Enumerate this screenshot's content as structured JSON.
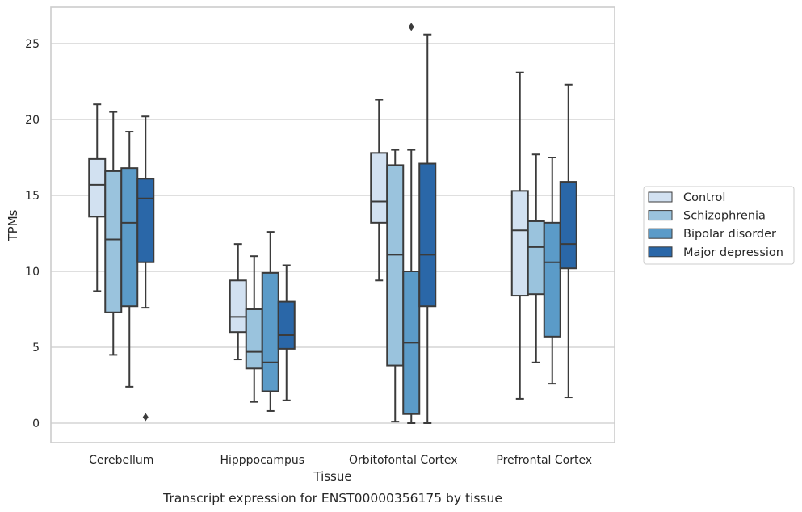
{
  "chart_data": {
    "type": "box",
    "title": "",
    "caption": "Transcript expression for ENST00000356175 by tissue",
    "xlabel": "Tissue",
    "ylabel": "TPMs",
    "ylim": [
      -1.2,
      27.2
    ],
    "yticks": [
      0,
      5,
      10,
      15,
      20,
      25
    ],
    "grid": "horizontal",
    "legend_position": "right",
    "categories": [
      "Cerebellum",
      "Hipppocampus",
      "Orbitofontal Cortex",
      "Prefrontal Cortex"
    ],
    "series": [
      {
        "name": "Control",
        "color": "#d2e1f1",
        "boxes": [
          {
            "whislo": 8.7,
            "q1": 13.6,
            "med": 15.7,
            "q3": 17.4,
            "whishi": 21.0,
            "fliers": []
          },
          {
            "whislo": 4.2,
            "q1": 6.0,
            "med": 7.0,
            "q3": 9.4,
            "whishi": 11.8,
            "fliers": []
          },
          {
            "whislo": 9.4,
            "q1": 13.2,
            "med": 14.6,
            "q3": 17.8,
            "whishi": 21.3,
            "fliers": []
          },
          {
            "whislo": 1.6,
            "q1": 8.4,
            "med": 12.7,
            "q3": 15.3,
            "whishi": 23.1,
            "fliers": []
          }
        ]
      },
      {
        "name": "Schizophrenia",
        "color": "#9ac3dd",
        "boxes": [
          {
            "whislo": 4.5,
            "q1": 7.3,
            "med": 12.1,
            "q3": 16.6,
            "whishi": 20.5,
            "fliers": []
          },
          {
            "whislo": 1.4,
            "q1": 3.6,
            "med": 4.7,
            "q3": 7.5,
            "whishi": 11.0,
            "fliers": []
          },
          {
            "whislo": 0.1,
            "q1": 3.8,
            "med": 11.1,
            "q3": 17.0,
            "whishi": 18.0,
            "fliers": []
          },
          {
            "whislo": 4.0,
            "q1": 8.5,
            "med": 11.6,
            "q3": 13.3,
            "whishi": 17.7,
            "fliers": []
          }
        ]
      },
      {
        "name": "Bipolar disorder",
        "color": "#5b9bc8",
        "boxes": [
          {
            "whislo": 2.4,
            "q1": 7.7,
            "med": 13.2,
            "q3": 16.8,
            "whishi": 19.2,
            "fliers": []
          },
          {
            "whislo": 0.8,
            "q1": 2.1,
            "med": 4.0,
            "q3": 9.9,
            "whishi": 12.6,
            "fliers": []
          },
          {
            "whislo": 0.0,
            "q1": 0.6,
            "med": 5.3,
            "q3": 10.0,
            "whishi": 18.0,
            "fliers": [
              26.1
            ]
          },
          {
            "whislo": 2.6,
            "q1": 5.7,
            "med": 10.6,
            "q3": 13.2,
            "whishi": 17.5,
            "fliers": []
          }
        ]
      },
      {
        "name": "Major depression",
        "color": "#2a67a8",
        "boxes": [
          {
            "whislo": 7.6,
            "q1": 10.6,
            "med": 14.8,
            "q3": 16.1,
            "whishi": 20.2,
            "fliers": [
              0.4
            ]
          },
          {
            "whislo": 1.5,
            "q1": 4.9,
            "med": 5.8,
            "q3": 8.0,
            "whishi": 10.4,
            "fliers": []
          },
          {
            "whislo": 0.0,
            "q1": 7.7,
            "med": 11.1,
            "q3": 17.1,
            "whishi": 25.6,
            "fliers": []
          },
          {
            "whislo": 1.7,
            "q1": 10.2,
            "med": 11.8,
            "q3": 15.9,
            "whishi": 22.3,
            "fliers": []
          }
        ]
      }
    ]
  }
}
